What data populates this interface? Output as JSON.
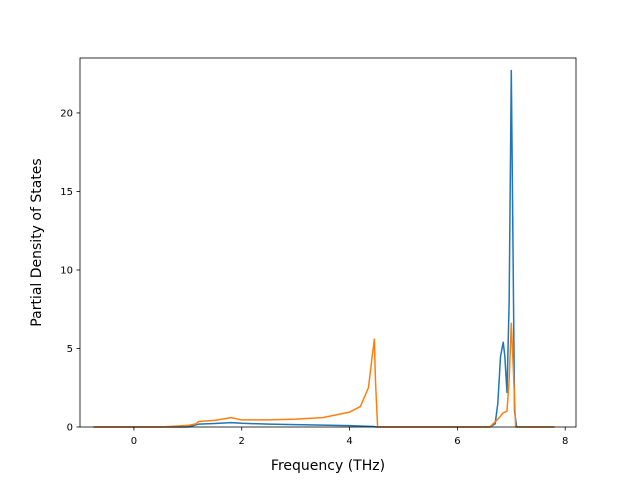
{
  "chart_data": {
    "type": "line",
    "title": "",
    "xlabel": "Frequency (THz)",
    "ylabel": "Partial Density of States",
    "xlim": [
      -1.0,
      8.2
    ],
    "ylim": [
      0,
      23.5
    ],
    "xticks": [
      0,
      2,
      4,
      6,
      8
    ],
    "yticks": [
      0,
      5,
      10,
      15,
      20
    ],
    "grid": false,
    "legend": "none",
    "series": [
      {
        "color": "#1f77b4",
        "points": [
          [
            -0.75,
            0
          ],
          [
            1.0,
            0
          ],
          [
            1.2,
            0.18
          ],
          [
            1.5,
            0.22
          ],
          [
            1.8,
            0.28
          ],
          [
            2.0,
            0.24
          ],
          [
            2.5,
            0.18
          ],
          [
            3.0,
            0.15
          ],
          [
            3.5,
            0.12
          ],
          [
            4.0,
            0.09
          ],
          [
            4.3,
            0.05
          ],
          [
            4.45,
            0.03
          ],
          [
            4.5,
            0
          ],
          [
            6.6,
            0
          ],
          [
            6.7,
            0.2
          ],
          [
            6.75,
            1.5
          ],
          [
            6.8,
            4.5
          ],
          [
            6.85,
            5.4
          ],
          [
            6.88,
            4.5
          ],
          [
            6.92,
            2.2
          ],
          [
            6.96,
            8.0
          ],
          [
            7.0,
            22.7
          ],
          [
            7.03,
            12.0
          ],
          [
            7.06,
            1.0
          ],
          [
            7.1,
            0
          ],
          [
            7.8,
            0
          ]
        ]
      },
      {
        "color": "#ff7f0e",
        "points": [
          [
            -0.75,
            0
          ],
          [
            0.5,
            0
          ],
          [
            1.0,
            0.1
          ],
          [
            1.15,
            0.2
          ],
          [
            1.2,
            0.35
          ],
          [
            1.5,
            0.42
          ],
          [
            1.8,
            0.6
          ],
          [
            2.0,
            0.45
          ],
          [
            2.5,
            0.45
          ],
          [
            3.0,
            0.5
          ],
          [
            3.5,
            0.6
          ],
          [
            4.0,
            0.95
          ],
          [
            4.2,
            1.3
          ],
          [
            4.35,
            2.5
          ],
          [
            4.42,
            4.5
          ],
          [
            4.46,
            5.6
          ],
          [
            4.48,
            3.0
          ],
          [
            4.52,
            0
          ],
          [
            6.6,
            0
          ],
          [
            6.75,
            0.5
          ],
          [
            6.85,
            0.9
          ],
          [
            6.92,
            1.0
          ],
          [
            6.96,
            3.0
          ],
          [
            7.0,
            6.6
          ],
          [
            7.04,
            3.5
          ],
          [
            7.08,
            0
          ],
          [
            7.8,
            0
          ]
        ]
      }
    ]
  }
}
